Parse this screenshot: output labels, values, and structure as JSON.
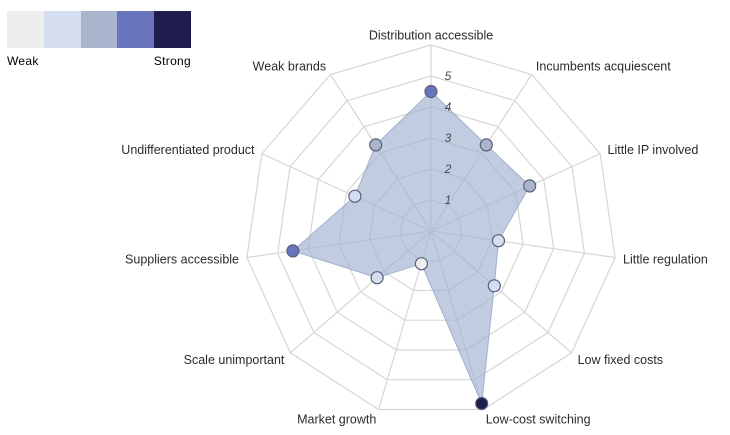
{
  "legend": {
    "colors": [
      "#eeeeee",
      "#d4def0",
      "#a9b5cd",
      "#6874bb",
      "#1e1d4e"
    ],
    "weak_label": "Weak",
    "strong_label": "Strong"
  },
  "chart_data": {
    "type": "radar",
    "title": "",
    "axes": [
      "Distribution accessible",
      "Incumbents acquiescent",
      "Little IP involved",
      "Little regulation",
      "Low fixed costs",
      "Low-cost switching",
      "Market growth",
      "Scale unimportant",
      "Suppliers accessible",
      "Undifferentiated product",
      "Weak brands"
    ],
    "values": [
      4.5,
      3.3,
      3.5,
      2.2,
      2.7,
      5.8,
      1.1,
      2.3,
      4.5,
      2.7,
      3.3
    ],
    "point_colors": [
      "#6874bb",
      "#a9b5cd",
      "#a9b5cd",
      "#d4def0",
      "#d4def0",
      "#1e1d4e",
      "#eeeeee",
      "#d4def0",
      "#6874bb",
      "#d4def0",
      "#a9b5cd"
    ],
    "fill_color": "#9fb0cf",
    "ticks": [
      "1",
      "2",
      "3",
      "4",
      "5"
    ],
    "range": [
      0,
      6
    ],
    "grid": true,
    "legend_position": "top-left"
  }
}
